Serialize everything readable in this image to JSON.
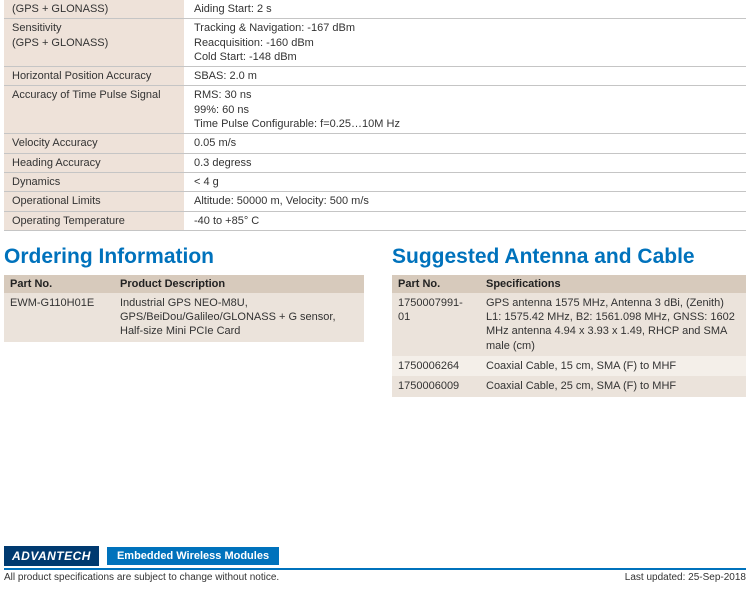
{
  "spec_rows": [
    {
      "label_lines": [
        "(GPS + GLONASS)"
      ],
      "value_lines": [
        "Aiding Start: 2 s"
      ]
    },
    {
      "label_lines": [
        "Sensitivity",
        "(GPS + GLONASS)"
      ],
      "value_lines": [
        "Tracking & Navigation: -167 dBm",
        "Reacquisition: -160 dBm",
        "Cold Start: -148 dBm"
      ]
    },
    {
      "label_lines": [
        "Horizontal Position Accuracy"
      ],
      "value_lines": [
        "SBAS: 2.0 m"
      ]
    },
    {
      "label_lines": [
        "Accuracy of Time Pulse Signal"
      ],
      "value_lines": [
        "RMS: 30 ns",
        "99%: 60 ns",
        "Time Pulse Configurable: f=0.25…10M Hz"
      ]
    },
    {
      "label_lines": [
        "Velocity Accuracy"
      ],
      "value_lines": [
        "0.05 m/s"
      ]
    },
    {
      "label_lines": [
        "Heading Accuracy"
      ],
      "value_lines": [
        "0.3 degress"
      ]
    },
    {
      "label_lines": [
        "Dynamics"
      ],
      "value_lines": [
        "< 4 g"
      ]
    },
    {
      "label_lines": [
        "Operational Limits"
      ],
      "value_lines": [
        "Altitude: 50000 m, Velocity: 500 m/s"
      ]
    },
    {
      "label_lines": [
        "Operating Temperature"
      ],
      "value_lines": [
        "-40 to +85° C"
      ]
    }
  ],
  "ordering": {
    "title": "Ordering Information",
    "headers": {
      "partno": "Part No.",
      "desc": "Product Description"
    },
    "rows": [
      {
        "partno": "EWM-G110H01E",
        "desc": "Industrial GPS NEO-M8U, GPS/BeiDou/Galileo/GLONASS + G sensor, Half-size Mini PCIe Card"
      }
    ]
  },
  "antenna": {
    "title": "Suggested Antenna and Cable",
    "headers": {
      "partno": "Part No.",
      "spec": "Specifications"
    },
    "rows": [
      {
        "partno": "1750007991-01",
        "spec": "GPS antenna 1575 MHz, Antenna 3 dBi, (Zenith)\nL1: 1575.42 MHz, B2: 1561.098 MHz, GNSS: 1602 MHz antenna 4.94 x 3.93 x 1.49, RHCP and SMA male (cm)"
      },
      {
        "partno": "1750006264",
        "spec": "Coaxial Cable, 15 cm, SMA (F) to MHF"
      },
      {
        "partno": "1750006009",
        "spec": "Coaxial Cable, 25 cm, SMA (F) to MHF"
      }
    ]
  },
  "footer": {
    "brand": "ADVANTECH",
    "category": "Embedded Wireless Modules",
    "disclaimer": "All product specifications are subject to change without notice.",
    "updated": "Last updated: 25-Sep-2018"
  },
  "colors": {
    "title": "#0072bc",
    "header_bg": "#d7cabc",
    "label_bg": "#eee2d9",
    "odd_row": "#ebe3db",
    "even_row": "#f4efe9",
    "brand_bg": "#003a70"
  }
}
